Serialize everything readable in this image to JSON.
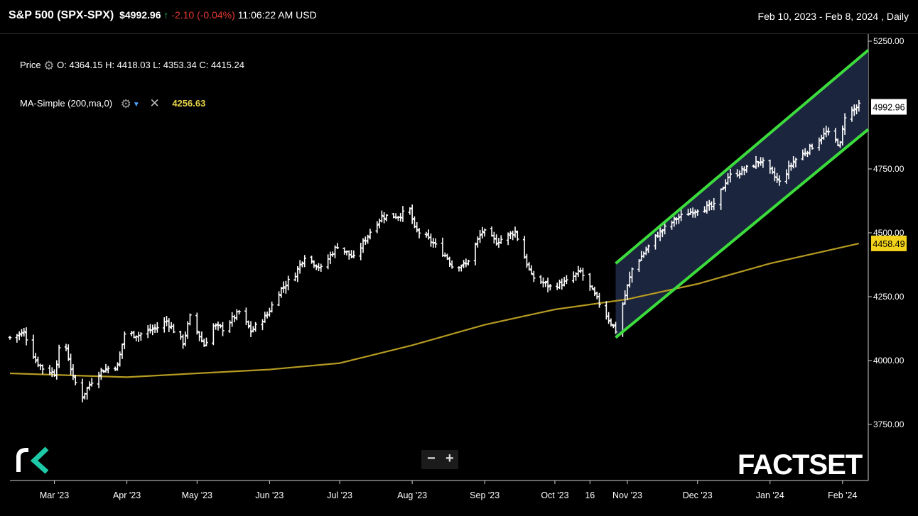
{
  "header": {
    "title": "S&P 500 (SPX-SPX)",
    "price": "$4992.96",
    "change": "-2.10",
    "change_pct": "(-0.04%)",
    "time": "11:06:22 AM USD",
    "range": "Feb 10, 2023 - Feb 8, 2024 , Daily"
  },
  "legend": {
    "price_label": "Price",
    "ohlc": "O: 4364.15  H: 4418.03  L: 4353.34  C: 4415.24",
    "ma_label": "MA-Simple (200,ma,0)",
    "ma_value": "4256.63"
  },
  "zoom": {
    "minus": "−",
    "plus": "+"
  },
  "logos": {
    "factset": "FACTSET"
  },
  "chart_data": {
    "type": "ohlc",
    "y_ticks": [
      "5250.00",
      "4750.00",
      "4500.00",
      "4250.00",
      "4000.00",
      "3750.00"
    ],
    "ylim": [
      3630,
      5250
    ],
    "x_ticks": [
      "Mar '23",
      "Apr '23",
      "May '23",
      "Jun '23",
      "Jul '23",
      "Aug '23",
      "Sep '23",
      "Oct '23",
      "16",
      "Nov '23",
      "Dec '23",
      "Jan '24",
      "Feb '24"
    ],
    "price_label_value": "4992.96",
    "ma_label_value": "4458.49",
    "colors": {
      "bars": "#ffffff",
      "ma": "#b59a22",
      "channel": "#3ddc3d",
      "channel_fill": "#1c2740",
      "ma_label_bg": "#f2d21b"
    },
    "price_series": [
      {
        "date": "2023-02-10",
        "close": 4090
      },
      {
        "date": "2023-02-16",
        "close": 4110
      },
      {
        "date": "2023-02-21",
        "close": 4000
      },
      {
        "date": "2023-02-24",
        "close": 3970
      },
      {
        "date": "2023-03-01",
        "close": 3950
      },
      {
        "date": "2023-03-03",
        "close": 4040
      },
      {
        "date": "2023-03-06",
        "close": 4050
      },
      {
        "date": "2023-03-09",
        "close": 3930
      },
      {
        "date": "2023-03-13",
        "close": 3860
      },
      {
        "date": "2023-03-15",
        "close": 3890
      },
      {
        "date": "2023-03-17",
        "close": 3920
      },
      {
        "date": "2023-03-21",
        "close": 3960
      },
      {
        "date": "2023-03-24",
        "close": 3970
      },
      {
        "date": "2023-03-28",
        "close": 3980
      },
      {
        "date": "2023-03-31",
        "close": 4105
      },
      {
        "date": "2023-04-06",
        "close": 4100
      },
      {
        "date": "2023-04-14",
        "close": 4130
      },
      {
        "date": "2023-04-18",
        "close": 4155
      },
      {
        "date": "2023-04-25",
        "close": 4070
      },
      {
        "date": "2023-04-28",
        "close": 4170
      },
      {
        "date": "2023-05-04",
        "close": 4060
      },
      {
        "date": "2023-05-08",
        "close": 4135
      },
      {
        "date": "2023-05-12",
        "close": 4125
      },
      {
        "date": "2023-05-19",
        "close": 4190
      },
      {
        "date": "2023-05-24",
        "close": 4115
      },
      {
        "date": "2023-05-31",
        "close": 4180
      },
      {
        "date": "2023-06-05",
        "close": 4270
      },
      {
        "date": "2023-06-12",
        "close": 4340
      },
      {
        "date": "2023-06-16",
        "close": 4410
      },
      {
        "date": "2023-06-23",
        "close": 4360
      },
      {
        "date": "2023-06-30",
        "close": 4450
      },
      {
        "date": "2023-07-07",
        "close": 4400
      },
      {
        "date": "2023-07-14",
        "close": 4505
      },
      {
        "date": "2023-07-19",
        "close": 4565
      },
      {
        "date": "2023-07-26",
        "close": 4566
      },
      {
        "date": "2023-07-31",
        "close": 4589
      },
      {
        "date": "2023-08-02",
        "close": 4515
      },
      {
        "date": "2023-08-09",
        "close": 4467
      },
      {
        "date": "2023-08-16",
        "close": 4404
      },
      {
        "date": "2023-08-18",
        "close": 4370
      },
      {
        "date": "2023-08-24",
        "close": 4376
      },
      {
        "date": "2023-08-31",
        "close": 4508
      },
      {
        "date": "2023-09-06",
        "close": 4465
      },
      {
        "date": "2023-09-14",
        "close": 4505
      },
      {
        "date": "2023-09-21",
        "close": 4330
      },
      {
        "date": "2023-09-29",
        "close": 4288
      },
      {
        "date": "2023-10-06",
        "close": 4308
      },
      {
        "date": "2023-10-12",
        "close": 4349
      },
      {
        "date": "2023-10-20",
        "close": 4224
      },
      {
        "date": "2023-10-27",
        "close": 4117
      },
      {
        "date": "2023-11-03",
        "close": 4358
      },
      {
        "date": "2023-11-14",
        "close": 4495
      },
      {
        "date": "2023-11-22",
        "close": 4556
      },
      {
        "date": "2023-12-01",
        "close": 4594
      },
      {
        "date": "2023-12-08",
        "close": 4604
      },
      {
        "date": "2023-12-14",
        "close": 4719
      },
      {
        "date": "2023-12-21",
        "close": 4746
      },
      {
        "date": "2023-12-28",
        "close": 4783
      },
      {
        "date": "2024-01-05",
        "close": 4697
      },
      {
        "date": "2024-01-11",
        "close": 4780
      },
      {
        "date": "2024-01-19",
        "close": 4839
      },
      {
        "date": "2024-01-25",
        "close": 4894
      },
      {
        "date": "2024-01-31",
        "close": 4845
      },
      {
        "date": "2024-02-02",
        "close": 4958
      },
      {
        "date": "2024-02-08",
        "close": 4997
      }
    ],
    "ma_series": [
      {
        "date": "2023-02-10",
        "value": 3950
      },
      {
        "date": "2023-03-15",
        "value": 3940
      },
      {
        "date": "2023-04-01",
        "value": 3935
      },
      {
        "date": "2023-05-01",
        "value": 3950
      },
      {
        "date": "2023-06-01",
        "value": 3965
      },
      {
        "date": "2023-07-01",
        "value": 3990
      },
      {
        "date": "2023-08-01",
        "value": 4060
      },
      {
        "date": "2023-09-01",
        "value": 4140
      },
      {
        "date": "2023-10-01",
        "value": 4200
      },
      {
        "date": "2023-11-01",
        "value": 4240
      },
      {
        "date": "2023-12-01",
        "value": 4300
      },
      {
        "date": "2024-01-01",
        "value": 4380
      },
      {
        "date": "2024-02-08",
        "value": 4458
      }
    ],
    "channel": {
      "upper": [
        {
          "date": "2023-10-27",
          "value": 4380
        },
        {
          "date": "2024-02-12",
          "value": 5215
        }
      ],
      "lower": [
        {
          "date": "2023-10-27",
          "value": 4090
        },
        {
          "date": "2024-02-12",
          "value": 4905
        }
      ]
    }
  }
}
